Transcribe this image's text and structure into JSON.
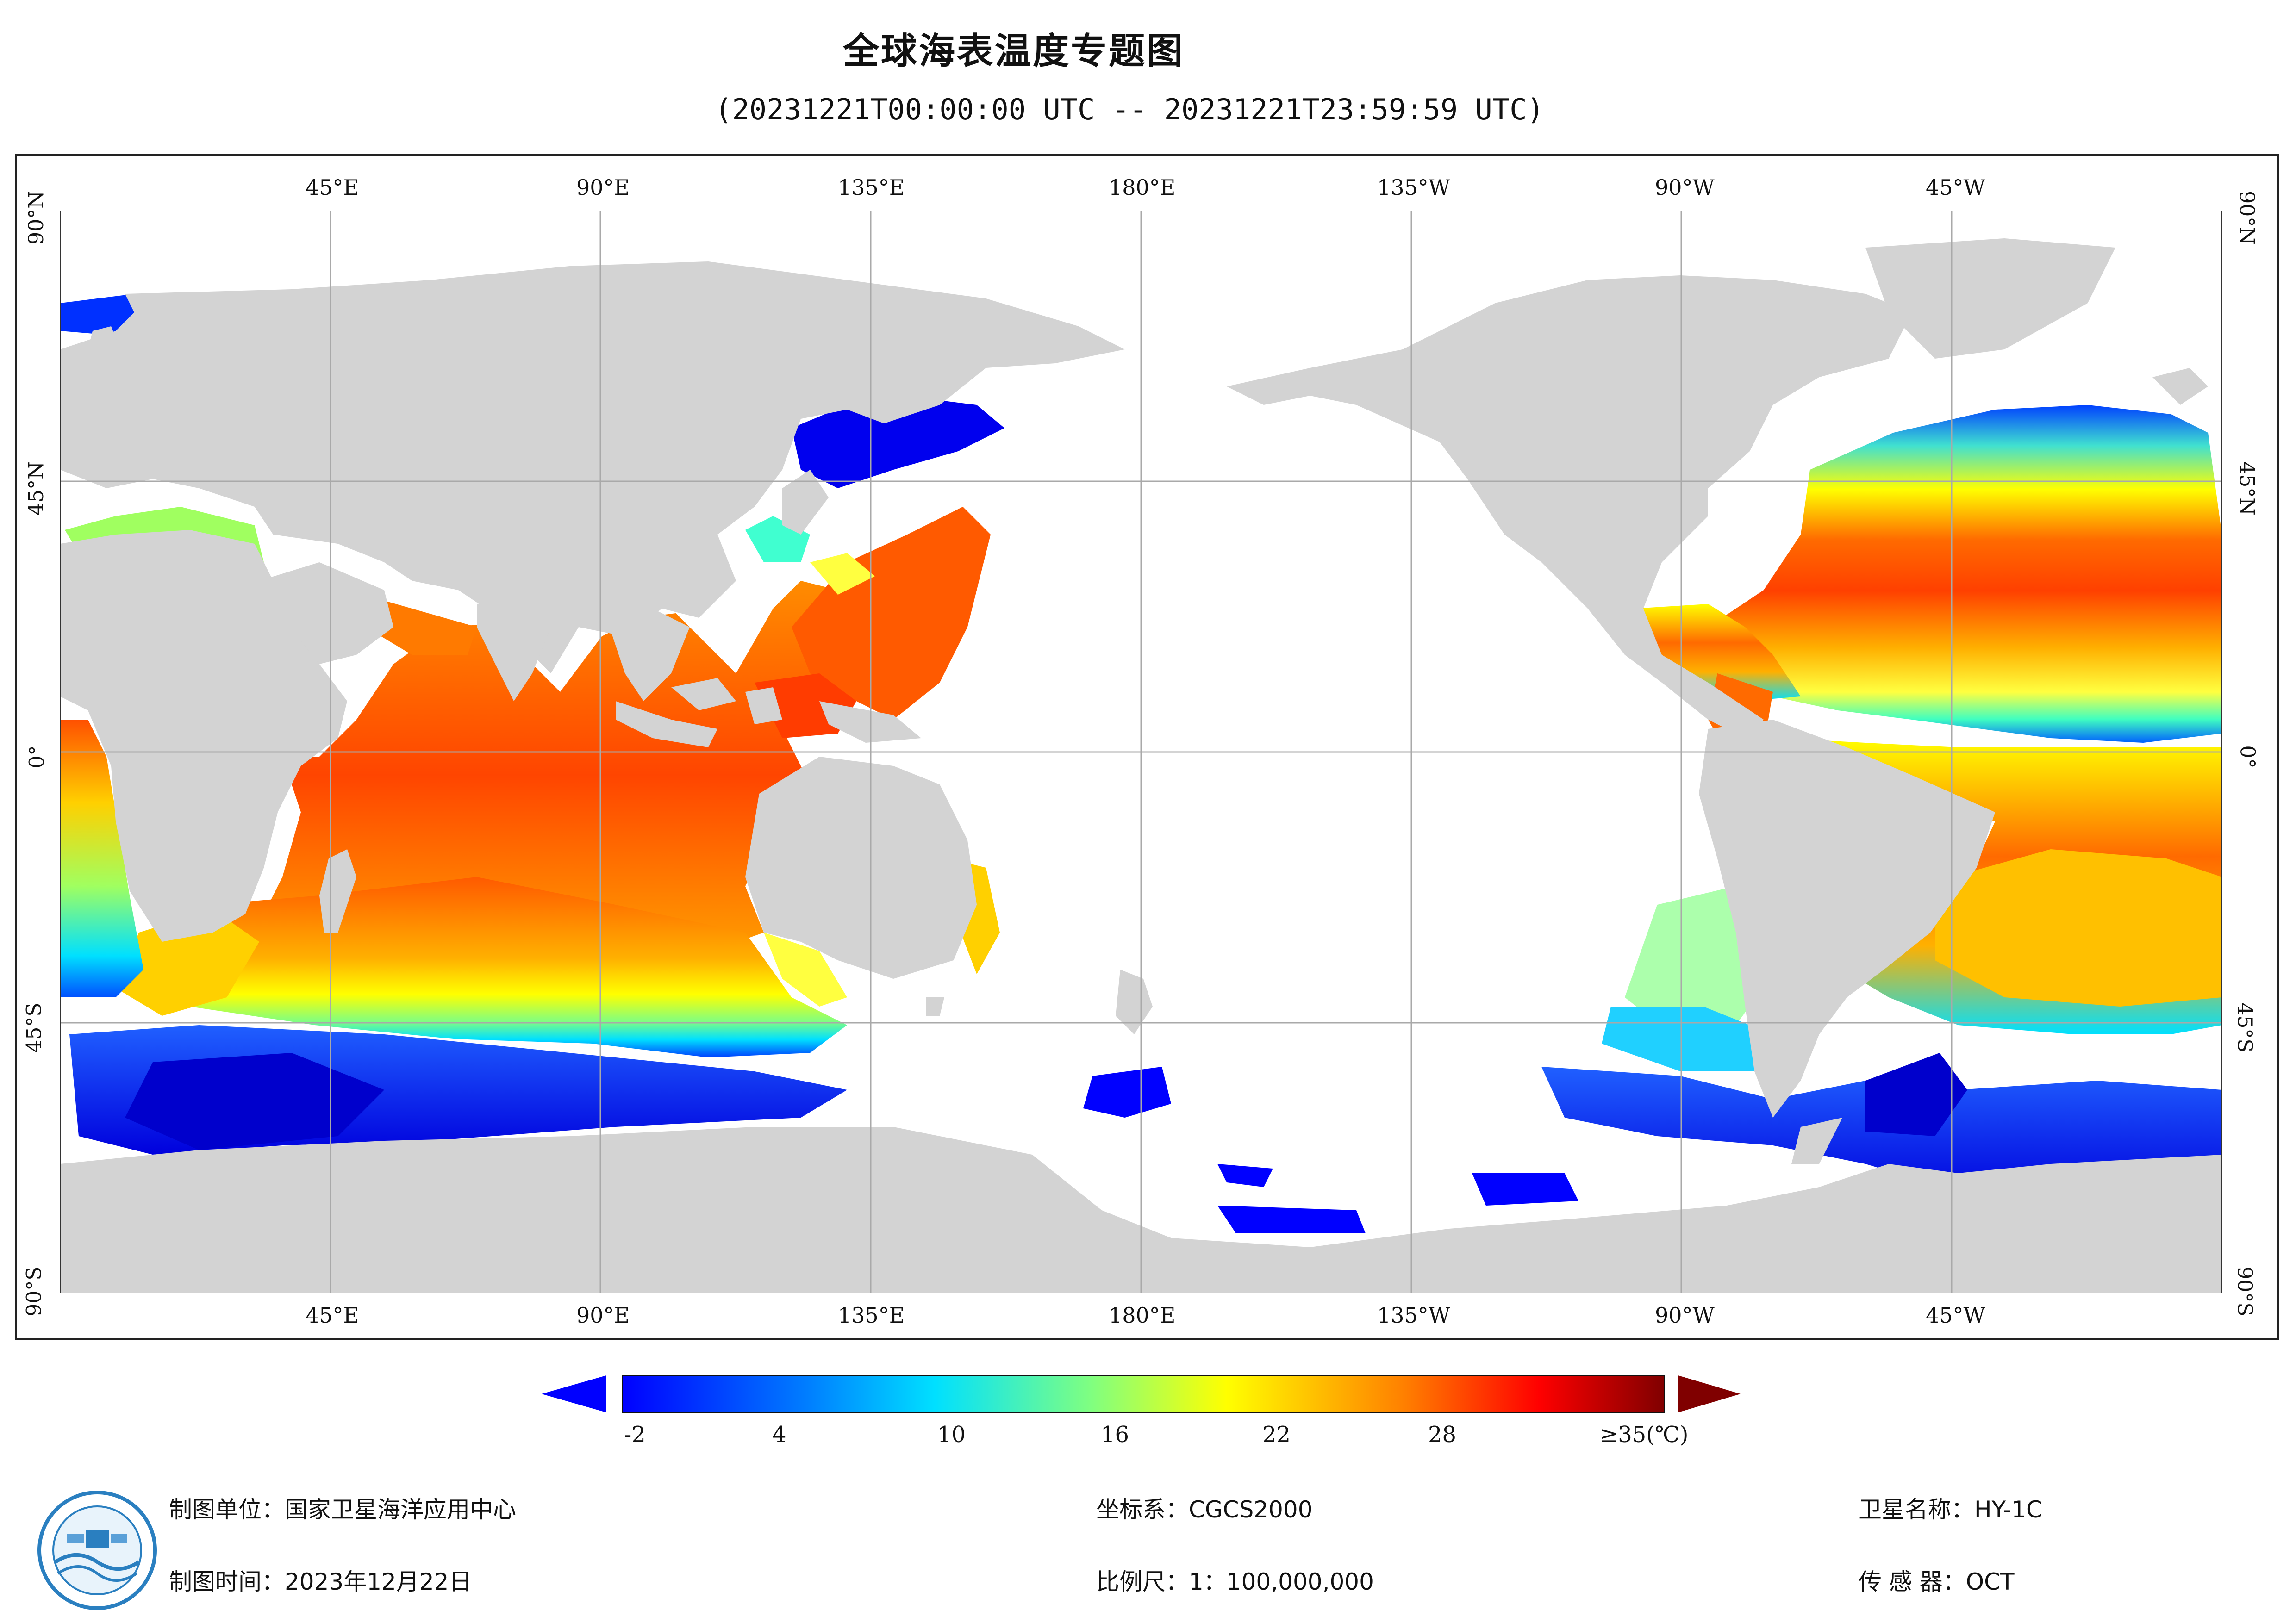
{
  "header": {
    "title": "全球海表温度专题图",
    "subtitle": "(20231221T00:00:00 UTC -- 20231221T23:59:59 UTC)"
  },
  "map": {
    "lon_labels": [
      "45°E",
      "90°E",
      "135°E",
      "180°E",
      "135°W",
      "90°W",
      "45°W"
    ],
    "lat_labels": [
      "90°N",
      "45°N",
      "0°",
      "45°S",
      "90°S"
    ],
    "colors": {
      "land": "#d3d3d3",
      "ocean_nodata": "#ffffff",
      "grid": "#a9a9a9"
    }
  },
  "colorbar": {
    "labels": [
      "-2",
      "4",
      "10",
      "16",
      "22",
      "28",
      "≥35(℃)"
    ],
    "colors": {
      "low": "#0000ff",
      "mid": "#ffff00",
      "high": "#800000"
    }
  },
  "footer": {
    "unit": "制图单位：国家卫星海洋应用中心",
    "date": "制图时间：2023年12月22日",
    "crs": "坐标系：CGCS2000",
    "scale": "比例尺：1：100,000,000",
    "satellite": "卫星名称：HY-1C",
    "sensor": "传 感 器：OCT"
  }
}
